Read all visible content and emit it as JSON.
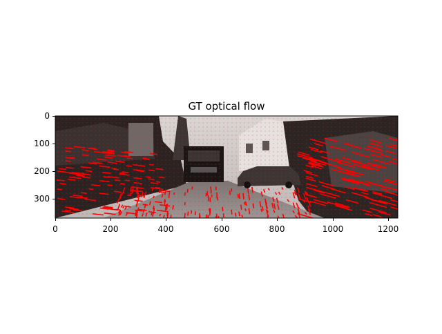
{
  "figure": {
    "title": "GT optical flow",
    "image_description": "KITTI street scene (grayscale) with red optical-flow quiver overlay",
    "x_axis": {
      "ticks": [
        "0",
        "200",
        "400",
        "600",
        "800",
        "1000",
        "1200"
      ]
    },
    "y_axis": {
      "ticks": [
        "0",
        "100",
        "200",
        "300"
      ]
    },
    "overlay_color": "#ff0000"
  }
}
